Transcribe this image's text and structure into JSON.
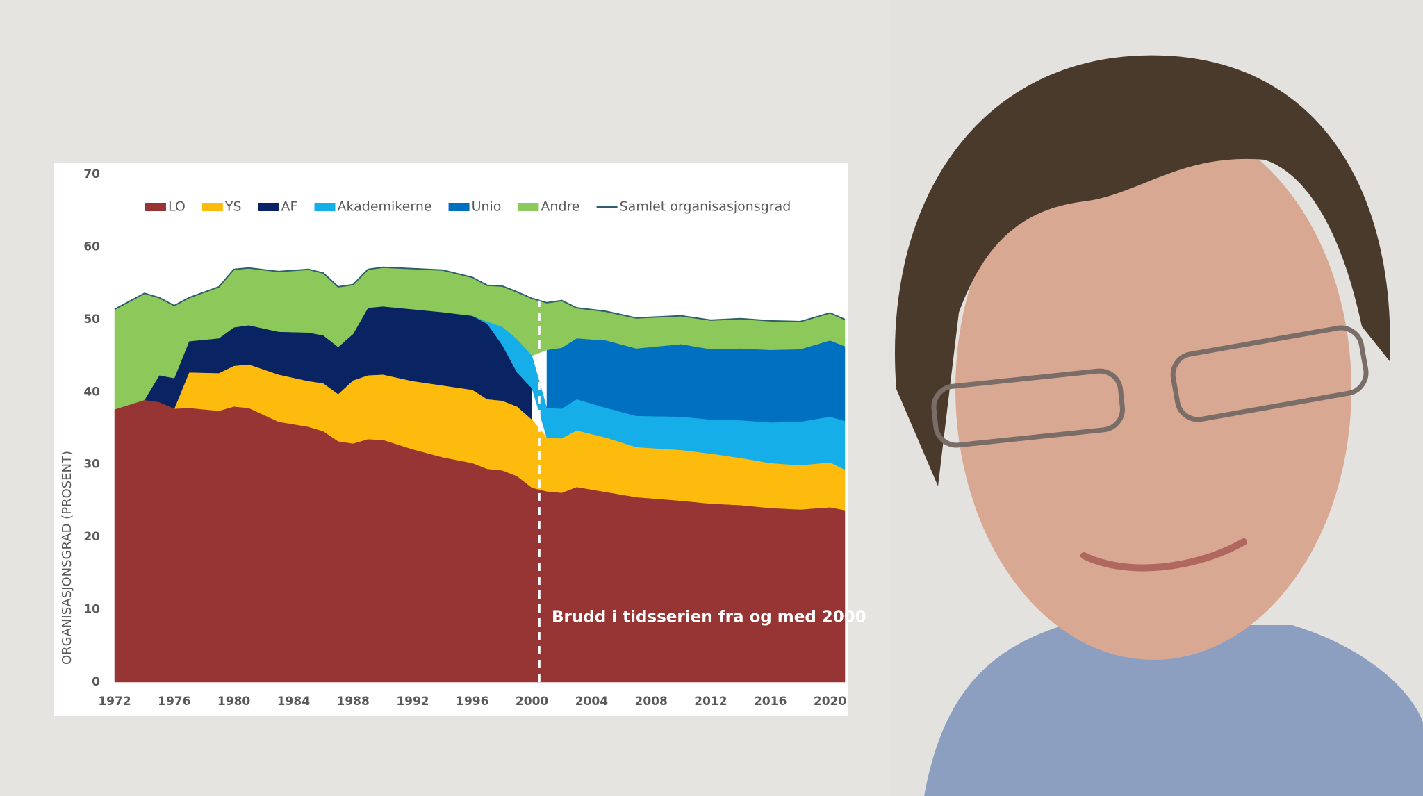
{
  "chart_data": {
    "type": "area",
    "y_label": "ORGANISASJONSGRAD (PROSENT)",
    "annotation": "Brudd i tidsserien fra og med 2000",
    "break_x": 2000.5,
    "x": [
      1972,
      1974,
      1975,
      1976,
      1977,
      1979,
      1980,
      1981,
      1983,
      1985,
      1986,
      1987,
      1988,
      1989,
      1990,
      1992,
      1994,
      1996,
      1997,
      1998,
      1999,
      2000,
      2001,
      2002,
      2003,
      2005,
      2007,
      2010,
      2012,
      2014,
      2016,
      2018,
      2020,
      2021
    ],
    "xlim": [
      1972,
      2021
    ],
    "xticks": [
      1972,
      1976,
      1980,
      1984,
      1988,
      1992,
      1996,
      2000,
      2004,
      2008,
      2012,
      2016,
      2020
    ],
    "ylim": [
      0,
      70
    ],
    "yticks": [
      0,
      10,
      20,
      30,
      40,
      50,
      60,
      70
    ],
    "series": [
      {
        "name": "LO",
        "color": "#973534",
        "values": [
          37.6,
          38.9,
          38.6,
          37.7,
          37.8,
          37.4,
          38.0,
          37.8,
          35.9,
          35.2,
          34.6,
          33.2,
          32.9,
          33.5,
          33.4,
          32.1,
          31.0,
          30.2,
          29.4,
          29.2,
          28.4,
          26.8,
          26.3,
          26.1,
          26.9,
          26.2,
          25.5,
          25.0,
          24.6,
          24.4,
          24.0,
          23.8,
          24.1,
          23.7
        ]
      },
      {
        "name": "YS",
        "color": "#fdbb0d",
        "values": [
          null,
          null,
          null,
          0,
          4.9,
          5.2,
          5.6,
          6.0,
          6.5,
          6.3,
          6.6,
          6.5,
          8.7,
          8.8,
          9.0,
          9.4,
          9.9,
          10.1,
          9.6,
          9.6,
          9.6,
          9.4,
          7.4,
          7.5,
          7.8,
          7.5,
          6.9,
          7.0,
          6.9,
          6.5,
          6.2,
          6.1,
          6.2,
          5.6
        ]
      },
      {
        "name": "AF",
        "color": "#0a2463",
        "values": [
          null,
          0,
          3.7,
          4.2,
          4.3,
          4.8,
          5.3,
          5.4,
          5.9,
          6.7,
          6.6,
          6.5,
          6.4,
          9.3,
          9.4,
          9.9,
          10.1,
          10.2,
          10.4,
          7.7,
          4.7,
          4.3,
          null,
          null,
          null,
          null,
          null,
          null,
          null,
          null,
          null,
          null,
          null,
          null
        ]
      },
      {
        "name": "Akademikerne",
        "color": "#15aee8",
        "values": [
          null,
          null,
          null,
          null,
          null,
          null,
          null,
          null,
          null,
          null,
          null,
          null,
          null,
          null,
          null,
          null,
          null,
          0,
          0.3,
          2.5,
          4.6,
          4.5,
          4.1,
          4.1,
          4.3,
          4.1,
          4.3,
          4.6,
          4.7,
          5.2,
          5.6,
          6.0,
          6.3,
          6.7
        ]
      },
      {
        "name": "Unio",
        "color": "#0070c0",
        "values": [
          null,
          null,
          null,
          null,
          null,
          null,
          null,
          null,
          null,
          null,
          null,
          null,
          null,
          null,
          null,
          null,
          null,
          null,
          null,
          null,
          null,
          null,
          8.0,
          8.4,
          8.4,
          9.3,
          9.3,
          10.0,
          9.7,
          9.9,
          10.0,
          10.0,
          10.5,
          10.3
        ]
      },
      {
        "name": "Andre",
        "color": "#8dc85a",
        "values": [
          13.8,
          14.7,
          10.7,
          10.0,
          6.0,
          7.1,
          8.0,
          7.9,
          8.3,
          8.7,
          8.6,
          8.3,
          6.8,
          5.3,
          5.4,
          5.6,
          5.8,
          5.3,
          5.0,
          5.6,
          6.5,
          7.9,
          6.5,
          6.5,
          4.2,
          4.0,
          4.2,
          3.9,
          4.0,
          4.1,
          4.0,
          3.8,
          3.8,
          3.7
        ]
      },
      {
        "name": "Samlet organisasjonsgrad",
        "type": "line",
        "color": "#2e5f6b",
        "values": [
          51.4,
          53.6,
          53.0,
          51.9,
          53.0,
          54.5,
          56.9,
          57.1,
          56.6,
          56.9,
          56.4,
          54.5,
          54.8,
          56.9,
          57.2,
          57.0,
          56.8,
          55.8,
          54.7,
          54.6,
          53.8,
          52.9,
          52.3,
          52.6,
          51.6,
          51.1,
          50.2,
          50.5,
          49.9,
          50.1,
          49.8,
          49.7,
          50.9,
          50.0
        ]
      }
    ]
  }
}
